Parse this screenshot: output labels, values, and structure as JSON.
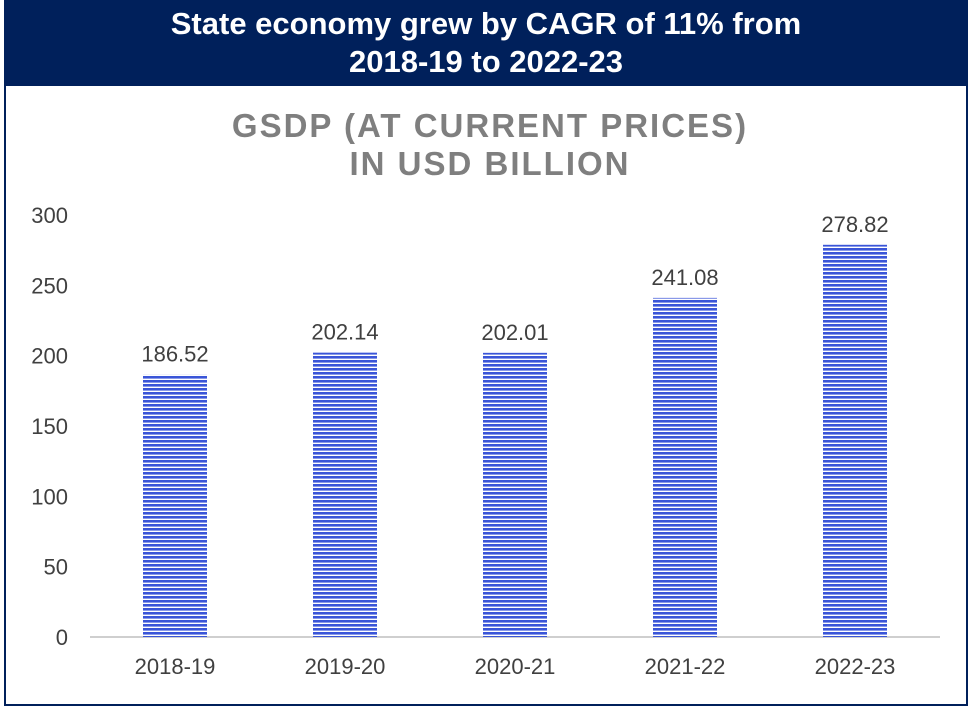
{
  "banner": {
    "line1": "State economy grew by CAGR of 11% from",
    "line2": "2018-19 to 2022-23"
  },
  "colors": {
    "banner_bg": "#00205b",
    "bar": "#3a55d8",
    "bar_stripe": "#ffffff",
    "chart_title": "#7f7f7f",
    "axis_text": "#404040"
  },
  "chart_data": {
    "type": "bar",
    "title_lines": [
      "GSDP (AT CURRENT PRICES)",
      "IN USD BILLION"
    ],
    "categories": [
      "2018-19",
      "2019-20",
      "2020-21",
      "2021-22",
      "2022-23"
    ],
    "values": [
      186.52,
      202.14,
      202.01,
      241.08,
      278.82
    ],
    "value_labels": [
      "186.52",
      "202.14",
      "202.01",
      "241.08",
      "278.82"
    ],
    "yticks": [
      0,
      50,
      100,
      150,
      200,
      250,
      300
    ],
    "ylim": [
      0,
      300
    ],
    "xlabel": "",
    "ylabel": "",
    "grid": false
  }
}
